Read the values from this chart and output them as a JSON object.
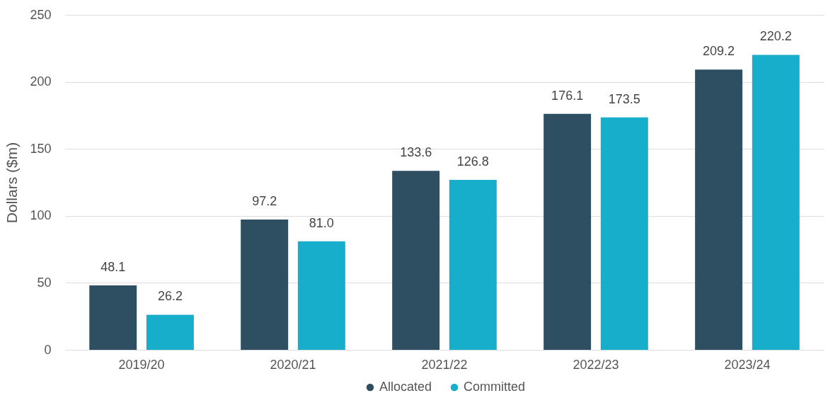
{
  "chart_data": {
    "type": "bar",
    "ylabel": "Dollars ($m)",
    "categories": [
      "2019/20",
      "2020/21",
      "2021/22",
      "2022/23",
      "2023/24"
    ],
    "series": [
      {
        "name": "Allocated",
        "color": "#2e4f62",
        "values": [
          48.1,
          97.2,
          133.6,
          176.1,
          209.2
        ],
        "value_labels": [
          "48.1",
          "97.2",
          "133.6",
          "176.1",
          "209.2"
        ]
      },
      {
        "name": "Committed",
        "color": "#17aecb",
        "values": [
          26.2,
          81.0,
          126.8,
          173.5,
          220.2
        ],
        "value_labels": [
          "26.2",
          "81.0",
          "126.8",
          "173.5",
          "220.2"
        ]
      }
    ],
    "ylim": [
      0,
      250
    ],
    "yticks": [
      0,
      50,
      100,
      150,
      200,
      250
    ],
    "grid": "y",
    "legend": "bottom"
  }
}
